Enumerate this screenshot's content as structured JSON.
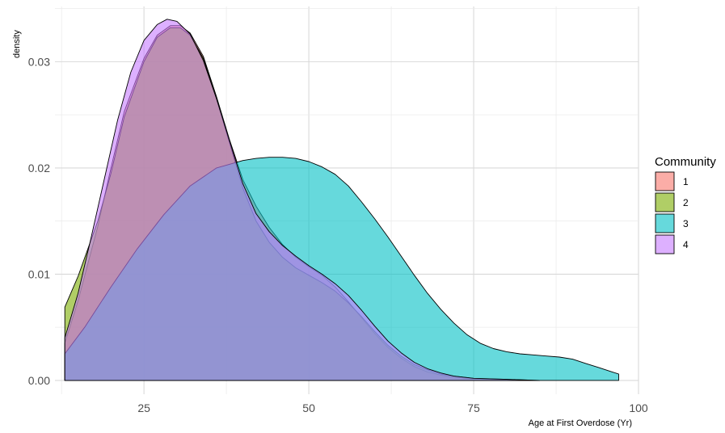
{
  "chart_data": {
    "type": "area",
    "xlabel": "Age at First Overdose (Yr)",
    "ylabel": "density",
    "xlim": [
      11.5,
      100
    ],
    "ylim": [
      -0.0013,
      0.0352
    ],
    "x_ticks": [
      25,
      50,
      75,
      100
    ],
    "y_ticks": [
      0.0,
      0.01,
      0.02,
      0.03
    ],
    "x_tick_labels": [
      "25",
      "50",
      "75",
      "100"
    ],
    "y_tick_labels": [
      "0.00",
      "0.01",
      "0.02",
      "0.03"
    ],
    "grid": true,
    "legend": {
      "title": "Community",
      "position": "right",
      "entries": [
        "1",
        "2",
        "3",
        "4"
      ]
    },
    "series": [
      {
        "name": "1",
        "color": "#F8766D",
        "points": [
          [
            13,
            0.0035
          ],
          [
            15,
            0.0075
          ],
          [
            18,
            0.0145
          ],
          [
            20,
            0.02
          ],
          [
            22,
            0.0253
          ],
          [
            25,
            0.0303
          ],
          [
            27,
            0.0325
          ],
          [
            29,
            0.0334
          ],
          [
            30.5,
            0.0334
          ],
          [
            32,
            0.0327
          ],
          [
            34,
            0.0305
          ],
          [
            36,
            0.0267
          ],
          [
            38,
            0.0226
          ],
          [
            40,
            0.0189
          ],
          [
            42,
            0.0164
          ],
          [
            44,
            0.0144
          ],
          [
            46,
            0.0128
          ],
          [
            48,
            0.0116
          ],
          [
            50,
            0.0107
          ],
          [
            52,
            0.0099
          ],
          [
            54,
            0.0088
          ],
          [
            56,
            0.0074
          ],
          [
            58,
            0.0059
          ],
          [
            60,
            0.0044
          ],
          [
            62,
            0.0031
          ],
          [
            64,
            0.0021
          ],
          [
            66,
            0.0013
          ],
          [
            68,
            0.0008
          ],
          [
            70,
            0.0005
          ],
          [
            72,
            0.0003
          ],
          [
            75,
            0.00015
          ],
          [
            80,
            5e-05
          ],
          [
            84,
            0.0
          ]
        ]
      },
      {
        "name": "2",
        "color": "#7CAE00",
        "points": [
          [
            13,
            0.0069
          ],
          [
            15,
            0.0098
          ],
          [
            18,
            0.015
          ],
          [
            20,
            0.0195
          ],
          [
            22,
            0.0248
          ],
          [
            25,
            0.03
          ],
          [
            27,
            0.0323
          ],
          [
            29,
            0.0332
          ],
          [
            30.5,
            0.0332
          ],
          [
            32,
            0.0325
          ],
          [
            34,
            0.0303
          ],
          [
            36,
            0.0265
          ],
          [
            38,
            0.0223
          ],
          [
            40,
            0.0181
          ],
          [
            42,
            0.015
          ],
          [
            44,
            0.013
          ],
          [
            46,
            0.0116
          ],
          [
            48,
            0.0106
          ],
          [
            50,
            0.0099
          ],
          [
            52,
            0.0092
          ],
          [
            54,
            0.0084
          ],
          [
            56,
            0.0073
          ],
          [
            58,
            0.006
          ],
          [
            60,
            0.0046
          ],
          [
            62,
            0.0033
          ],
          [
            64,
            0.0023
          ],
          [
            66,
            0.0015
          ],
          [
            68,
            0.001
          ],
          [
            70,
            0.0006
          ],
          [
            72,
            0.0004
          ],
          [
            75,
            0.0002
          ],
          [
            80,
            0.0001
          ],
          [
            85,
            0.0
          ]
        ]
      },
      {
        "name": "3",
        "color": "#00BFC4",
        "points": [
          [
            13,
            0.0025
          ],
          [
            16,
            0.005
          ],
          [
            20,
            0.0088
          ],
          [
            24,
            0.0124
          ],
          [
            28,
            0.0156
          ],
          [
            32,
            0.0183
          ],
          [
            36,
            0.02
          ],
          [
            40,
            0.0207
          ],
          [
            42,
            0.0209
          ],
          [
            44,
            0.021
          ],
          [
            46,
            0.021
          ],
          [
            48,
            0.0209
          ],
          [
            50,
            0.0206
          ],
          [
            52,
            0.0201
          ],
          [
            54,
            0.0194
          ],
          [
            56,
            0.0183
          ],
          [
            58,
            0.0168
          ],
          [
            60,
            0.0152
          ],
          [
            62,
            0.0135
          ],
          [
            64,
            0.0117
          ],
          [
            66,
            0.0099
          ],
          [
            68,
            0.0082
          ],
          [
            70,
            0.0067
          ],
          [
            72,
            0.0054
          ],
          [
            74,
            0.0043
          ],
          [
            76,
            0.0035
          ],
          [
            78,
            0.003
          ],
          [
            80,
            0.0027
          ],
          [
            82,
            0.0025
          ],
          [
            84,
            0.0024
          ],
          [
            86,
            0.0023
          ],
          [
            88,
            0.0022
          ],
          [
            90,
            0.002
          ],
          [
            92,
            0.0016
          ],
          [
            94,
            0.0012
          ],
          [
            96,
            0.0008
          ],
          [
            97,
            0.0006
          ]
        ]
      },
      {
        "name": "4",
        "color": "#C77CFF",
        "points": [
          [
            13,
            0.004
          ],
          [
            15,
            0.0082
          ],
          [
            17,
            0.0135
          ],
          [
            19,
            0.019
          ],
          [
            21,
            0.0245
          ],
          [
            23,
            0.029
          ],
          [
            25,
            0.032
          ],
          [
            27,
            0.0335
          ],
          [
            28.5,
            0.034
          ],
          [
            30,
            0.0338
          ],
          [
            32,
            0.0326
          ],
          [
            34,
            0.0301
          ],
          [
            36,
            0.0265
          ],
          [
            38,
            0.0225
          ],
          [
            40,
            0.0185
          ],
          [
            42,
            0.0157
          ],
          [
            44,
            0.014
          ],
          [
            46,
            0.0127
          ],
          [
            48,
            0.0117
          ],
          [
            50,
            0.0108
          ],
          [
            52,
            0.01
          ],
          [
            54,
            0.0091
          ],
          [
            56,
            0.008
          ],
          [
            58,
            0.0066
          ],
          [
            60,
            0.0051
          ],
          [
            62,
            0.0037
          ],
          [
            64,
            0.0026
          ],
          [
            66,
            0.0017
          ],
          [
            68,
            0.0011
          ],
          [
            70,
            0.0007
          ],
          [
            72,
            0.0004
          ],
          [
            75,
            0.0002
          ],
          [
            80,
            0.0001
          ],
          [
            85,
            0.0
          ]
        ]
      }
    ]
  }
}
